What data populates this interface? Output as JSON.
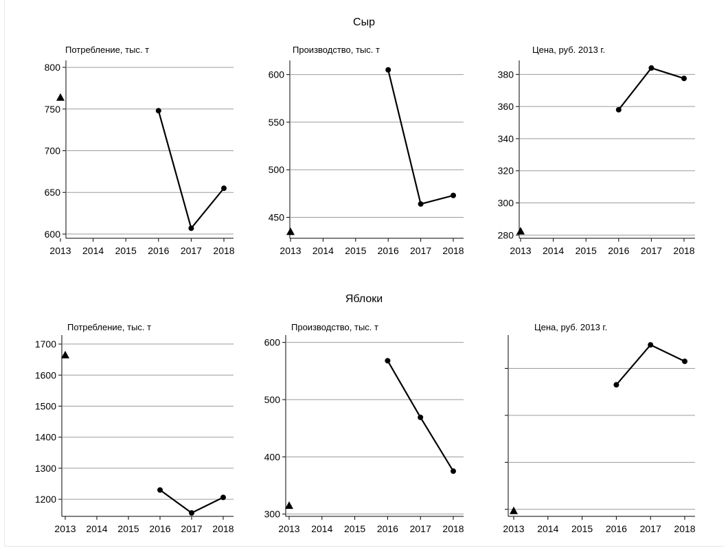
{
  "groups": [
    {
      "title": "Сыр"
    },
    {
      "title": "Яблоки"
    }
  ],
  "chart_data": [
    {
      "type": "line",
      "group": "Сыр",
      "title": "Потребление, тыс. т",
      "categories": [
        "2013",
        "2014",
        "2015",
        "2016",
        "2017",
        "2018"
      ],
      "series": [
        {
          "x": [
            2016,
            2017,
            2018
          ],
          "values": [
            748,
            607,
            655
          ],
          "marker": "circle"
        }
      ],
      "markers": [
        {
          "x": 2013,
          "y": 764,
          "shape": "triangle"
        }
      ],
      "ylim": [
        595,
        805
      ],
      "yticks": [
        600,
        650,
        700,
        750,
        800
      ],
      "grid": true
    },
    {
      "type": "line",
      "group": "Сыр",
      "title": "Производство, тыс. т",
      "categories": [
        "2013",
        "2014",
        "2015",
        "2016",
        "2017",
        "2018"
      ],
      "series": [
        {
          "x": [
            2016,
            2017,
            2018
          ],
          "values": [
            605,
            464,
            473
          ],
          "marker": "circle"
        }
      ],
      "markers": [
        {
          "x": 2013,
          "y": 435,
          "shape": "triangle"
        }
      ],
      "ylim": [
        428,
        612
      ],
      "yticks": [
        450,
        500,
        550,
        600
      ],
      "grid": true
    },
    {
      "type": "line",
      "group": "Сыр",
      "title": "Цена, руб. 2013 г.",
      "categories": [
        "2013",
        "2014",
        "2015",
        "2016",
        "2017",
        "2018"
      ],
      "series": [
        {
          "x": [
            2016,
            2017,
            2018
          ],
          "values": [
            358,
            384,
            377.5
          ],
          "marker": "circle"
        }
      ],
      "markers": [
        {
          "x": 2013,
          "y": 282.5,
          "shape": "triangle"
        }
      ],
      "ylim": [
        278,
        387
      ],
      "yticks": [
        280,
        300,
        320,
        340,
        360,
        380
      ],
      "grid": true
    },
    {
      "type": "line",
      "group": "Яблоки",
      "title": "Потребление, тыс. т",
      "categories": [
        "2013",
        "2014",
        "2015",
        "2016",
        "2017",
        "2018"
      ],
      "series": [
        {
          "x": [
            2016,
            2017,
            2018
          ],
          "values": [
            1230,
            1156,
            1206
          ],
          "marker": "circle"
        }
      ],
      "markers": [
        {
          "x": 2013,
          "y": 1665,
          "shape": "triangle"
        }
      ],
      "ylim": [
        1145,
        1720
      ],
      "yticks": [
        1200,
        1300,
        1400,
        1500,
        1600,
        1700
      ],
      "grid": true
    },
    {
      "type": "line",
      "group": "Яблоки",
      "title": "Производство, тыс. т",
      "categories": [
        "2013",
        "2014",
        "2015",
        "2016",
        "2017",
        "2018"
      ],
      "series": [
        {
          "x": [
            2016,
            2017,
            2018
          ],
          "values": [
            568,
            469,
            375
          ],
          "marker": "circle"
        }
      ],
      "markers": [
        {
          "x": 2013,
          "y": 315,
          "shape": "triangle"
        }
      ],
      "ylim": [
        296,
        608
      ],
      "yticks": [
        300,
        400,
        500,
        600
      ],
      "grid": true
    },
    {
      "type": "line",
      "group": "Яблоки",
      "title": "Цена, руб. 2013 г.",
      "categories": [
        "2013",
        "2014",
        "2015",
        "2016",
        "2017",
        "2018"
      ],
      "series": [
        {
          "x": [
            2016,
            2017,
            2018
          ],
          "values": [
            3.65,
            4.5,
            4.15
          ],
          "marker": "circle"
        }
      ],
      "markers": [
        {
          "x": 2013,
          "y": 0.97,
          "shape": "triangle"
        }
      ],
      "ylim": [
        0.85,
        4.65
      ],
      "yticks": [
        1,
        2,
        3,
        4,
        5
      ],
      "show_ytick_labels": false,
      "grid": true
    }
  ]
}
